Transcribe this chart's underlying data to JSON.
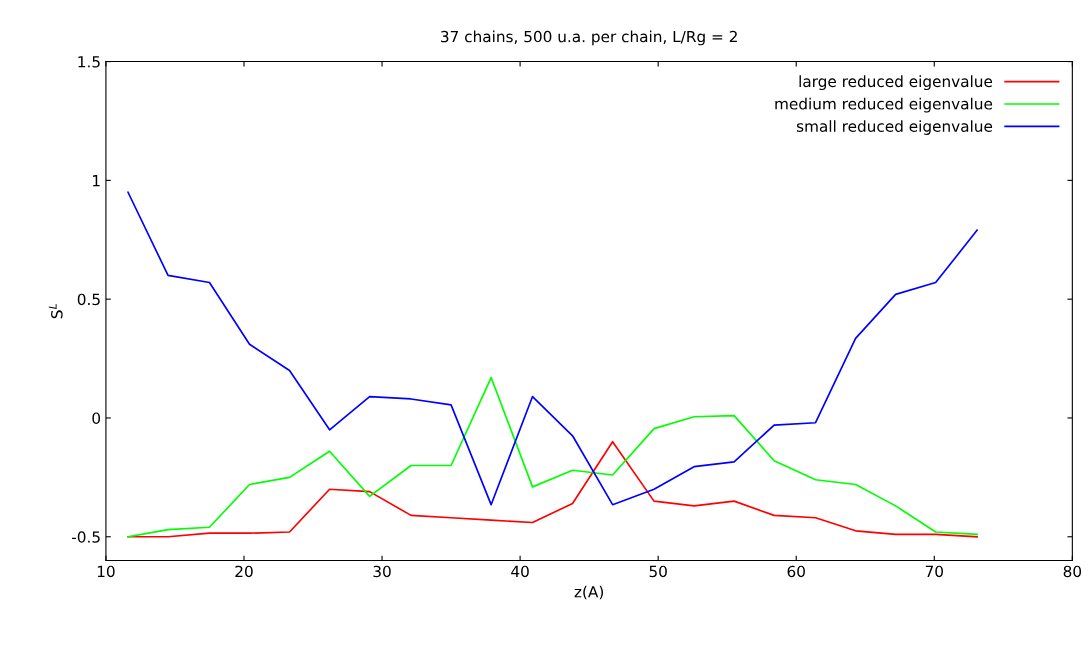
{
  "chart_data": {
    "type": "line",
    "title": "37 chains, 500 u.a. per chain, L/Rg = 2",
    "xlabel": "z(A)",
    "ylabel": "S$^{L}$",
    "x": [
      11.6,
      14.5,
      17.5,
      20.4,
      23.3,
      26.2,
      29.1,
      32.1,
      35.0,
      37.9,
      40.9,
      43.8,
      46.7,
      49.7,
      52.6,
      55.5,
      58.4,
      61.4,
      64.3,
      67.2,
      70.1,
      73.1
    ],
    "series": [
      {
        "name": "large reduced eigenvalue",
        "color": "#ff0000",
        "values": [
          -0.5,
          -0.5,
          -0.485,
          -0.485,
          -0.48,
          -0.3,
          -0.31,
          -0.41,
          -0.42,
          -0.43,
          -0.44,
          -0.36,
          -0.1,
          -0.35,
          -0.37,
          -0.35,
          -0.41,
          -0.42,
          -0.475,
          -0.49,
          -0.49,
          -0.5
        ]
      },
      {
        "name": "medium reduced eigenvalue",
        "color": "#00ff00",
        "values": [
          -0.5,
          -0.47,
          -0.46,
          -0.28,
          -0.25,
          -0.14,
          -0.33,
          -0.2,
          -0.2,
          0.17,
          -0.29,
          -0.22,
          -0.24,
          -0.045,
          0.005,
          0.01,
          -0.18,
          -0.26,
          -0.28,
          -0.37,
          -0.48,
          -0.49
        ]
      },
      {
        "name": "small reduced eigenvalue",
        "color": "#0000ff",
        "values": [
          0.95,
          0.6,
          0.57,
          0.31,
          0.2,
          -0.05,
          0.09,
          0.08,
          0.055,
          -0.365,
          0.09,
          -0.075,
          -0.365,
          -0.3,
          -0.205,
          -0.185,
          -0.03,
          -0.02,
          0.335,
          0.52,
          0.57,
          0.79
        ]
      }
    ],
    "xlim": [
      10,
      80
    ],
    "xticks": [
      10,
      20,
      30,
      40,
      50,
      60,
      70,
      80
    ],
    "ylim": [
      -0.6,
      1.5
    ],
    "yticks": [
      -0.5,
      0,
      0.5,
      1,
      1.5
    ],
    "grid": false,
    "legend": "top right",
    "marker": "none",
    "line_style": "solid"
  }
}
